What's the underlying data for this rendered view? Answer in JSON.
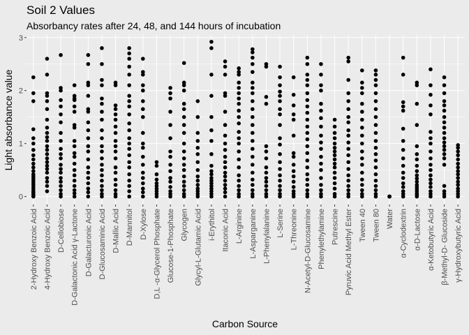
{
  "chart_data": {
    "type": "scatter",
    "title": "Soil 2 Values",
    "subtitle": "Absorbancy rates after 24, 48, and 144 hours of incubation",
    "xlabel": "Carbon Source",
    "ylabel": "Light absorbance value",
    "ylim": [
      -0.15,
      3.05
    ],
    "yticks": [
      0,
      1,
      2,
      3
    ],
    "grid": true,
    "colors": {
      "panel": "#ebebeb",
      "grid_major": "#ffffff",
      "point": "#000000",
      "tick_text": "#4d4d4d"
    },
    "categories": [
      "2-Hydroxy Benzoic Acid",
      "4-Hydroxy Benzoic Acid",
      "D-Cellobiose",
      "D-Galactonic Acid γ-Lactone",
      "D-Galacturonic Acid",
      "D-Glucosaminic Acid",
      "D-Mallic Acid",
      "D-Mannitol",
      "D-Xylose",
      "D,L -α-Glycerol Phosphate",
      "Glucose-1-Phosphate",
      "Glycogen",
      "Glycyl-L-Glutamic Acid",
      "i-Erythitol",
      "Itaconic Acid",
      "L-Arginine",
      "L-Asparganine",
      "L-Phenylalanine",
      "L-Serine",
      "L-Threonine",
      "N-Acetyl-D-Glucosamine",
      "Phenylethylamine",
      "Putrescine",
      "Pyruvic Acid Methyl Ester",
      "Tween 40",
      "Tween 80",
      "Water",
      "α-Cyclodextrin",
      "α-D-Lactose",
      "α-Ketobutyric Acid",
      "β-Methyl-D- Glucoside",
      "γ-Hydroxybutyric Acid"
    ],
    "series": [
      {
        "values": [
          [
            0,
            0.02,
            0.05,
            0.08,
            0.1,
            0.14,
            0.18,
            0.22,
            0.26,
            0.3,
            0.34,
            0.38,
            0.42,
            0.48,
            0.55,
            0.62,
            0.7,
            0.78,
            0.88,
            1.0,
            1.1,
            1.27,
            1.8,
            1.95,
            2.25
          ],
          [
            0.1,
            0.2,
            0.28,
            0.35,
            0.45,
            0.52,
            0.58,
            0.65,
            0.72,
            0.8,
            0.88,
            0.95,
            1.05,
            1.12,
            1.2,
            1.3,
            1.45,
            1.65,
            1.8,
            1.9,
            1.95,
            2.3,
            2.6
          ],
          [
            0,
            0.05,
            0.12,
            0.2,
            0.28,
            0.35,
            0.45,
            0.52,
            0.6,
            0.72,
            0.8,
            0.9,
            1.05,
            1.2,
            1.4,
            1.55,
            1.7,
            1.82,
            2.0,
            2.05,
            2.67
          ],
          [
            0,
            0.06,
            0.12,
            0.2,
            0.3,
            0.4,
            0.5,
            0.62,
            0.75,
            0.82,
            0.95,
            1.05,
            1.3,
            1.35,
            1.6,
            1.7,
            1.82,
            1.85,
            1.9,
            2.1
          ],
          [
            0,
            0.08,
            0.15,
            0.25,
            0.35,
            0.45,
            0.55,
            0.7,
            0.85,
            0.95,
            1.1,
            1.25,
            1.4,
            1.6,
            1.65,
            1.9,
            2.1,
            2.15,
            2.5,
            2.67
          ],
          [
            0,
            0.05,
            0.12,
            0.2,
            0.3,
            0.4,
            0.5,
            0.6,
            0.72,
            0.85,
            0.95,
            1.1,
            1.25,
            1.45,
            1.6,
            1.75,
            1.85,
            2.1,
            2.2,
            2.5,
            2.8
          ],
          [
            0,
            0.05,
            0.12,
            0.22,
            0.32,
            0.45,
            0.55,
            0.72,
            0.85,
            0.95,
            1.05,
            1.2,
            1.32,
            1.45,
            1.55,
            1.65,
            1.72,
            2.1,
            2.15
          ],
          [
            0,
            0.1,
            0.2,
            0.3,
            0.42,
            0.55,
            0.65,
            0.78,
            0.9,
            1.0,
            1.1,
            1.25,
            1.38,
            1.55,
            1.7,
            1.8,
            1.9,
            2.1,
            2.3,
            2.45,
            2.6,
            2.7,
            2.8
          ],
          [
            0,
            0.08,
            0.15,
            0.25,
            0.35,
            0.45,
            0.6,
            0.75,
            0.92,
            1.0,
            1.2,
            1.5,
            1.65,
            1.8,
            2.0,
            2.1,
            2.3,
            2.35,
            2.6
          ],
          [
            0,
            0.05,
            0.1,
            0.15,
            0.2,
            0.25,
            0.32,
            0.42,
            0.58,
            0.65
          ],
          [
            0,
            0.05,
            0.1,
            0.18,
            0.28,
            0.35,
            0.48,
            0.6,
            0.75,
            0.85,
            1.1,
            1.35,
            1.6,
            1.85,
            1.95,
            2.05
          ],
          [
            0,
            0.05,
            0.12,
            0.2,
            0.28,
            0.38,
            0.5,
            0.6,
            0.72,
            0.85,
            1.0,
            1.2,
            1.35,
            1.5,
            1.65,
            1.75,
            2.0,
            2.1,
            2.15,
            2.52
          ],
          [
            0,
            0.05,
            0.1,
            0.15,
            0.22,
            0.3,
            0.38,
            0.5,
            0.65,
            0.8,
            0.92,
            1.05,
            1.2,
            1.5,
            1.8
          ],
          [
            0,
            0.05,
            0.1,
            0.15,
            0.2,
            0.25,
            0.3,
            0.35,
            0.42,
            0.48,
            0.58,
            0.8,
            1.05,
            1.25,
            1.5,
            1.9,
            2.3,
            2.8,
            2.92
          ],
          [
            0,
            0.08,
            0.15,
            0.22,
            0.3,
            0.38,
            0.45,
            0.55,
            0.65,
            0.75,
            0.88,
            1.0,
            1.15,
            1.35,
            1.6,
            1.9,
            1.95,
            2.3,
            2.45,
            2.55
          ],
          [
            0,
            0.05,
            0.12,
            0.2,
            0.3,
            0.4,
            0.55,
            0.7,
            0.85,
            1.0,
            1.1,
            1.22,
            1.38,
            1.5,
            1.62,
            1.75,
            1.85,
            1.95,
            2.05,
            2.15,
            2.3,
            2.35,
            2.42
          ],
          [
            0,
            0.05,
            0.12,
            0.22,
            0.32,
            0.45,
            0.6,
            0.75,
            0.9,
            1.05,
            1.2,
            1.35,
            1.5,
            1.65,
            1.8,
            1.95,
            2.05,
            2.15,
            2.35,
            2.5,
            2.62,
            2.72,
            2.78
          ],
          [
            0,
            0.05,
            0.12,
            0.2,
            0.28,
            0.35,
            0.45,
            0.55,
            0.72,
            0.85,
            0.95,
            1.75,
            1.88,
            2.45,
            2.5
          ],
          [
            0,
            0.05,
            0.12,
            0.2,
            0.3,
            0.4,
            0.52,
            0.65,
            0.8,
            0.98,
            1.1,
            1.35,
            1.55,
            1.65,
            1.8,
            1.9,
            1.98,
            2.1,
            2.25,
            2.45
          ],
          [
            0,
            0.05,
            0.1,
            0.18,
            0.28,
            0.38,
            0.48,
            0.6,
            0.75,
            0.82,
            1.15,
            1.45,
            1.55,
            1.72,
            1.92,
            2.25
          ],
          [
            0,
            0.05,
            0.12,
            0.22,
            0.32,
            0.42,
            0.55,
            0.68,
            0.82,
            0.95,
            1.08,
            1.2,
            1.32,
            1.45,
            1.58,
            1.7,
            1.82,
            1.95,
            2.1,
            2.2,
            2.3,
            2.5,
            2.62
          ],
          [
            0,
            0.05,
            0.12,
            0.22,
            0.35,
            0.5,
            0.62,
            0.75,
            0.9,
            1.02,
            1.15,
            1.32,
            1.48,
            1.62,
            1.75,
            2.0,
            2.1,
            2.3,
            2.5
          ],
          [
            0,
            0.05,
            0.15,
            0.25,
            0.35,
            0.45,
            0.55,
            0.62,
            0.7,
            0.78,
            0.85,
            0.92,
            1.0,
            1.1,
            1.2,
            1.32,
            1.45
          ],
          [
            0,
            0.05,
            0.12,
            0.2,
            0.3,
            0.4,
            0.52,
            0.65,
            0.78,
            0.9,
            1.02,
            1.15,
            1.25,
            1.4,
            1.5,
            1.65,
            1.8,
            1.95,
            2.2,
            2.55,
            2.62
          ],
          [
            0,
            0.05,
            0.12,
            0.22,
            0.32,
            0.45,
            0.6,
            0.72,
            0.85,
            1.0,
            1.15,
            1.3,
            1.45,
            1.6,
            1.75,
            1.95,
            2.05,
            2.15,
            2.38
          ],
          [
            0,
            0.05,
            0.12,
            0.2,
            0.3,
            0.42,
            0.55,
            0.68,
            0.8,
            0.92,
            1.05,
            1.2,
            1.35,
            1.5,
            1.65,
            1.8,
            1.95,
            2.1,
            2.2,
            2.3,
            2.38
          ],
          [
            0,
            0,
            0,
            0
          ],
          [
            0,
            0.05,
            0.1,
            0.18,
            0.25,
            0.35,
            0.45,
            0.58,
            0.72,
            0.88,
            1.05,
            1.28,
            1.62,
            1.7,
            1.78,
            2.3,
            2.62
          ],
          [
            0,
            0.03,
            0.06,
            0.1,
            0.14,
            0.18,
            0.22,
            0.28,
            0.34,
            0.4,
            0.48,
            0.58,
            0.7,
            0.8,
            0.95,
            1.35,
            1.75,
            2.1,
            2.15
          ],
          [
            0,
            0.05,
            0.1,
            0.18,
            0.25,
            0.32,
            0.4,
            0.5,
            0.6,
            0.72,
            0.85,
            1.0,
            1.1,
            1.22,
            1.55,
            1.72,
            1.92,
            2.1,
            2.4
          ],
          [
            0,
            0.05,
            0.1,
            0.2,
            0.6,
            0.72,
            0.8,
            0.88,
            0.95,
            1.02,
            1.1,
            1.2,
            1.3,
            1.4,
            1.5,
            1.62,
            1.72,
            1.8,
            1.95,
            2.1,
            2.25
          ],
          [
            0,
            0.05,
            0.1,
            0.15,
            0.22,
            0.28,
            0.35,
            0.42,
            0.48,
            0.55,
            0.62,
            0.7,
            0.78,
            0.85,
            0.92,
            0.97
          ]
        ]
      }
    ]
  }
}
